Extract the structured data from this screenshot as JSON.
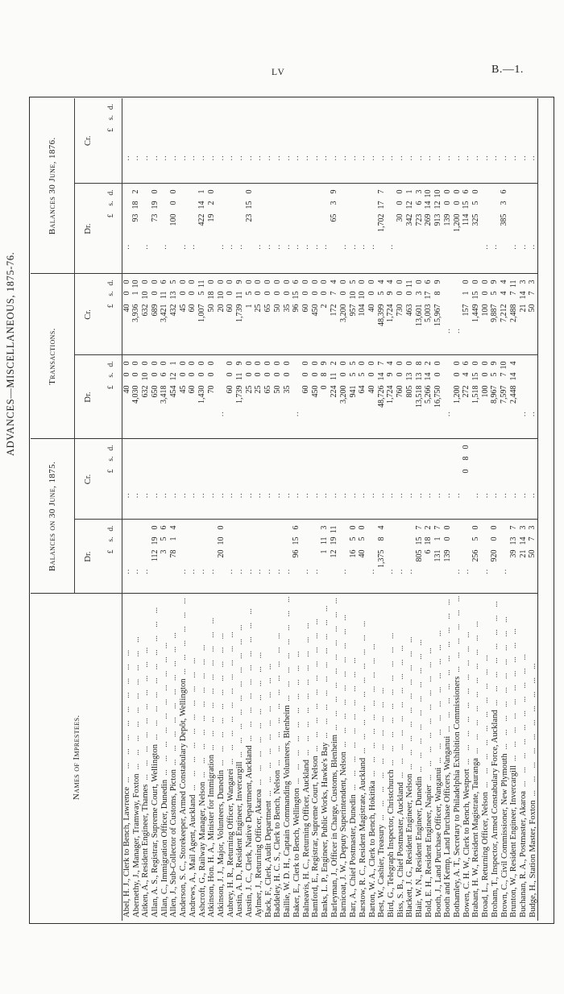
{
  "page": {
    "page_number": "LV",
    "doc_ref": "B.—1.",
    "title": "ADVANCES—MISCELLANEOUS, 1875-76."
  },
  "table": {
    "name_header": "Names of Imprestees.",
    "groups": [
      {
        "label": "Balances on 30 June, 1875."
      },
      {
        "label": "Transactions."
      },
      {
        "label": "Balances 30 June, 1876."
      }
    ],
    "dr_label": "Dr.",
    "cr_label": "Cr.",
    "currency_header": {
      "pounds": "£",
      "shillings": "s.",
      "pence": "d."
    },
    "empty_cell": "..",
    "dot_leader": "... ... ... ... ... ... ... ... ... ...",
    "rows": [
      {
        "name": "Abel, H. J., Clerk to Bench, Lawrence",
        "b1875_dr": "",
        "b1875_cr": "",
        "trans_dr": "40 0 0",
        "trans_cr": "40 0 0",
        "b1876_dr": "",
        "b1876_cr": ""
      },
      {
        "name": "Abernethy, J., Manager, Tramway, Foxton",
        "b1875_dr": "",
        "b1875_cr": "",
        "trans_dr": "4,030 0 0",
        "trans_cr": "3,936 1 10",
        "b1876_dr": "93 18 2",
        "b1876_cr": ""
      },
      {
        "name": "Aitken, A., Resident Engineer, Thames",
        "b1875_dr": "",
        "b1875_cr": "",
        "trans_dr": "632 10 0",
        "trans_cr": "632 10 0",
        "b1876_dr": "",
        "b1876_cr": ""
      },
      {
        "name": "Allan, A. S., Registrar, Supreme Court, Wellington",
        "b1875_dr": "112 19 0",
        "b1875_cr": "",
        "trans_dr": "650 0 0",
        "trans_cr": "689 0 0",
        "b1876_dr": "73 19 0",
        "b1876_cr": ""
      },
      {
        "name": "Allan, C., Immigration Officer, Dunedin",
        "b1875_dr": "3 5 6",
        "b1875_cr": "",
        "trans_dr": "3,418 6 0",
        "trans_cr": "3,421 11 6",
        "b1876_dr": "",
        "b1876_cr": ""
      },
      {
        "name": "Allen, J., Sub-Collector of Customs, Picton",
        "b1875_dr": "78 1 4",
        "b1875_cr": "",
        "trans_dr": "454 12 1",
        "trans_cr": "432 13 5",
        "b1876_dr": "100 0 0",
        "b1876_cr": ""
      },
      {
        "name": "Anderson, S. C., Storekeeper, Armed Constabulary Depôt, Wellington",
        "b1875_dr": "",
        "b1875_cr": "",
        "trans_dr": "45 0 0",
        "trans_cr": "45 0 0",
        "b1876_dr": "",
        "b1876_cr": ""
      },
      {
        "name": "Andrews, A., Mail Agent, Auckland",
        "b1875_dr": "",
        "b1875_cr": "",
        "trans_dr": "60 0 0",
        "trans_cr": "60 0 0",
        "b1876_dr": "",
        "b1876_cr": ""
      },
      {
        "name": "Ashcroft, G., Railway Manager, Nelson",
        "b1875_dr": "",
        "b1875_cr": "",
        "trans_dr": "1,430 0 0",
        "trans_cr": "1,007 5 11",
        "b1876_dr": "422 14 1",
        "b1876_cr": ""
      },
      {
        "name": "Atkinson, Hon. H. A., Minister for Immigration",
        "b1875_dr": "",
        "b1875_cr": "",
        "trans_dr": "70 0 0",
        "trans_cr": "50 18 0",
        "b1876_dr": "19 2 0",
        "b1876_cr": ""
      },
      {
        "name": "Atkinson, J. J., Major, Volunteers, Dunedin",
        "b1875_dr": "20 10 0",
        "b1875_cr": "",
        "trans_dr": "",
        "trans_cr": "20 10 0",
        "b1876_dr": "",
        "b1876_cr": ""
      },
      {
        "name": "Aubrey, H. R., Returning Officer, Wangarei",
        "b1875_dr": "",
        "b1875_cr": "",
        "trans_dr": "60 0 0",
        "trans_cr": "60 0 0",
        "b1876_dr": "",
        "b1876_cr": ""
      },
      {
        "name": "Austin, A. D., Resident Engineer, Invercargill",
        "b1875_dr": "",
        "b1875_cr": "",
        "trans_dr": "1,739 11 9",
        "trans_cr": "1,739 11 9",
        "b1876_dr": "",
        "b1876_cr": ""
      },
      {
        "name": "Austin, J. C., Clerk, Native Department, Auckland",
        "b1875_dr": "",
        "b1875_cr": "",
        "trans_dr": "25 0 0",
        "trans_cr": "1 5 0",
        "b1876_dr": "23 15 0",
        "b1876_cr": ""
      },
      {
        "name": "Aylmer, J., Returning Officer, Akaroa",
        "b1875_dr": "",
        "b1875_cr": "",
        "trans_dr": "25 0 0",
        "trans_cr": "25 0 0",
        "b1876_dr": "",
        "b1876_cr": ""
      },
      {
        "name": "Back, F., Clerk, Audit Department",
        "b1875_dr": "",
        "b1875_cr": "",
        "trans_dr": "65 0 0",
        "trans_cr": "65 0 0",
        "b1876_dr": "",
        "b1876_cr": ""
      },
      {
        "name": "Baddeley, H. C. S., Clerk to Bench, Nelson",
        "b1875_dr": "",
        "b1875_cr": "",
        "trans_dr": "50 0 0",
        "trans_cr": "50 0 0",
        "b1876_dr": "",
        "b1876_cr": ""
      },
      {
        "name": "Baillie, W. D. H., Captain Commanding Volunteers, Blenheim",
        "b1875_dr": "",
        "b1875_cr": "",
        "trans_dr": "35 0 0",
        "trans_cr": "35 0 0",
        "b1876_dr": "",
        "b1876_cr": ""
      },
      {
        "name": "Baker, E., Clerk to Bench, Wellington",
        "b1875_dr": "96 15 6",
        "b1875_cr": "",
        "trans_dr": "",
        "trans_cr": "96 15 6",
        "b1876_dr": "",
        "b1876_cr": ""
      },
      {
        "name": "Balneavis, H. C., Returning Officer, Auckland",
        "b1875_dr": "",
        "b1875_cr": "",
        "trans_dr": "60 0 0",
        "trans_cr": "60 0 0",
        "b1876_dr": "",
        "b1876_cr": ""
      },
      {
        "name": "Bamford, E., Registrar, Supreme Court, Nelson",
        "b1875_dr": "",
        "b1875_cr": "",
        "trans_dr": "450 0 0",
        "trans_cr": "450 0 0",
        "b1876_dr": "",
        "b1876_cr": ""
      },
      {
        "name": "Banks, L. P., Engineer, Public Works, Hawke's Bay",
        "b1875_dr": "1 11 3",
        "b1875_cr": "",
        "trans_dr": "0 8 9",
        "trans_cr": "2 0 0",
        "b1876_dr": "",
        "b1876_cr": ""
      },
      {
        "name": "Barleyman, J., Officer in Charge, Customs, Blenheim",
        "b1875_dr": "12 19 11",
        "b1875_cr": "",
        "trans_dr": "224 11 2",
        "trans_cr": "172 7 4",
        "b1876_dr": "65 3 9",
        "b1876_cr": ""
      },
      {
        "name": "Barnicoat, J. W., Deputy Superintendent, Nelson",
        "b1875_dr": "",
        "b1875_cr": "",
        "trans_dr": "3,200 0 0",
        "trans_cr": "3,200 0 0",
        "b1876_dr": "",
        "b1876_cr": ""
      },
      {
        "name": "Barr, A., Chief Postmaster, Dunedin",
        "b1875_dr": "16 5 0",
        "b1875_cr": "",
        "trans_dr": "941 5 5",
        "trans_cr": "957 10 5",
        "b1876_dr": "",
        "b1876_cr": ""
      },
      {
        "name": "Barstow, R. C., Resident Magistrate, Auckland",
        "b1875_dr": "40 5 0",
        "b1875_cr": "",
        "trans_dr": "64 5 0",
        "trans_cr": "104 10 0",
        "b1876_dr": "",
        "b1876_cr": ""
      },
      {
        "name": "Barton, W. A., Clerk to Bench, Hokitika",
        "b1875_dr": "",
        "b1875_cr": "",
        "trans_dr": "40 0 0",
        "trans_cr": "40 0 0",
        "b1876_dr": "",
        "b1876_cr": ""
      },
      {
        "name": "Best, W., Cashier, Treasury",
        "b1875_dr": "1,375 8 4",
        "b1875_cr": "",
        "trans_dr": "48,726 14 7",
        "trans_cr": "48,399 5 4",
        "b1876_dr": "1,702 17 7",
        "b1876_cr": ""
      },
      {
        "name": "Bird, G., Telegraph Inspector, Christchurch",
        "b1875_dr": "",
        "b1875_cr": "",
        "trans_dr": "1,724 9 4",
        "trans_cr": "1,724 9 4",
        "b1876_dr": "",
        "b1876_cr": ""
      },
      {
        "name": "Biss, S. B., Chief Postmaster, Auckland",
        "b1875_dr": "",
        "b1875_cr": "",
        "trans_dr": "760 0 0",
        "trans_cr": "730 0 0",
        "b1876_dr": "30 0 0",
        "b1876_cr": ""
      },
      {
        "name": "Blackett, J. G., Resident Engineer, Nelson",
        "b1875_dr": "",
        "b1875_cr": "",
        "trans_dr": "805 13 0",
        "trans_cr": "463 0 11",
        "b1876_dr": "342 12 1",
        "b1876_cr": ""
      },
      {
        "name": "Blair, W. N., Resident Engineer, Dunedin",
        "b1875_dr": "805 15 7",
        "b1875_cr": "",
        "trans_dr": "13,518 13 8",
        "trans_cr": "13,601 3 0",
        "b1876_dr": "723 6 3",
        "b1876_cr": ""
      },
      {
        "name": "Bold, E. H., Resident Engineer, Napier",
        "b1875_dr": "6 18 2",
        "b1875_cr": "",
        "trans_dr": "5,266 14 2",
        "trans_cr": "5,003 17 6",
        "b1876_dr": "269 14 10",
        "b1876_cr": ""
      },
      {
        "name": "Booth, J., Land Purchase Officer, Wanganui",
        "b1875_dr": "131 1 7",
        "b1875_cr": "",
        "trans_dr": "16,750 0 0",
        "trans_cr": "15,967 8 9",
        "b1876_dr": "913 12 10",
        "b1876_cr": ""
      },
      {
        "name": "Booth and Kemp, Land Purchase Officers, Wanganui",
        "b1875_dr": "139 0 0",
        "b1875_cr": "",
        "trans_dr": "",
        "trans_cr": "",
        "b1876_dr": "139 0 0",
        "b1876_cr": ""
      },
      {
        "name": "Bothamley, A. T., Secretary to Philadelphia Exhibition Commissioners",
        "b1875_dr": "",
        "b1875_cr": "",
        "trans_dr": "1,200 0 0",
        "trans_cr": "",
        "b1876_dr": "1,200 0 0",
        "b1876_cr": ""
      },
      {
        "name": "Bowen, C. H. W., Clerk to Bench, Westport",
        "b1875_dr": "",
        "b1875_cr": "0 8 0",
        "trans_dr": "272 4 6",
        "trans_cr": "157 1 0",
        "b1876_dr": "114 15 6",
        "b1876_cr": ""
      },
      {
        "name": "Brabant, H. W., Resident Magistrate, Tauranga",
        "b1875_dr": "256 5 0",
        "b1875_cr": "",
        "trans_dr": "1,518 15 0",
        "trans_cr": "1,449 15 0",
        "b1876_dr": "325 5 0",
        "b1876_cr": ""
      },
      {
        "name": "Broad, L., Returning Officer, Nelson",
        "b1875_dr": "",
        "b1875_cr": "",
        "trans_dr": "100 0 0",
        "trans_cr": "100 0 0",
        "b1876_dr": "",
        "b1876_cr": ""
      },
      {
        "name": "Broham, T., Inspector, Armed Constabulary Force, Auckland",
        "b1875_dr": "920 0 0",
        "b1875_cr": "",
        "trans_dr": "8,967 5 9",
        "trans_cr": "9,887 5 9",
        "b1876_dr": "",
        "b1876_cr": ""
      },
      {
        "name": "Brown, C., Civil Commissioner, New Plymouth",
        "b1875_dr": "",
        "b1875_cr": "",
        "trans_dr": "7,597 7 10",
        "trans_cr": "7,212 4 4",
        "b1876_dr": "385 3 6",
        "b1876_cr": ""
      },
      {
        "name": "Brunton, W., Resident Engineer, Invercargill",
        "b1875_dr": "39 13 7",
        "b1875_cr": "",
        "trans_dr": "2,448 14 4",
        "trans_cr": "2,488 7 11",
        "b1876_dr": "",
        "b1876_cr": ""
      },
      {
        "name": "Buchanan, R. A., Postmaster, Akaroa",
        "b1875_dr": "21 14 3",
        "b1875_cr": "",
        "trans_dr": "",
        "trans_cr": "21 14 3",
        "b1876_dr": "",
        "b1876_cr": ""
      },
      {
        "name": "Budge, H., Station Master, Foxton",
        "b1875_dr": "50 7 3",
        "b1875_cr": "",
        "trans_dr": "",
        "trans_cr": "50 7 3",
        "b1876_dr": "",
        "b1876_cr": ""
      }
    ]
  }
}
